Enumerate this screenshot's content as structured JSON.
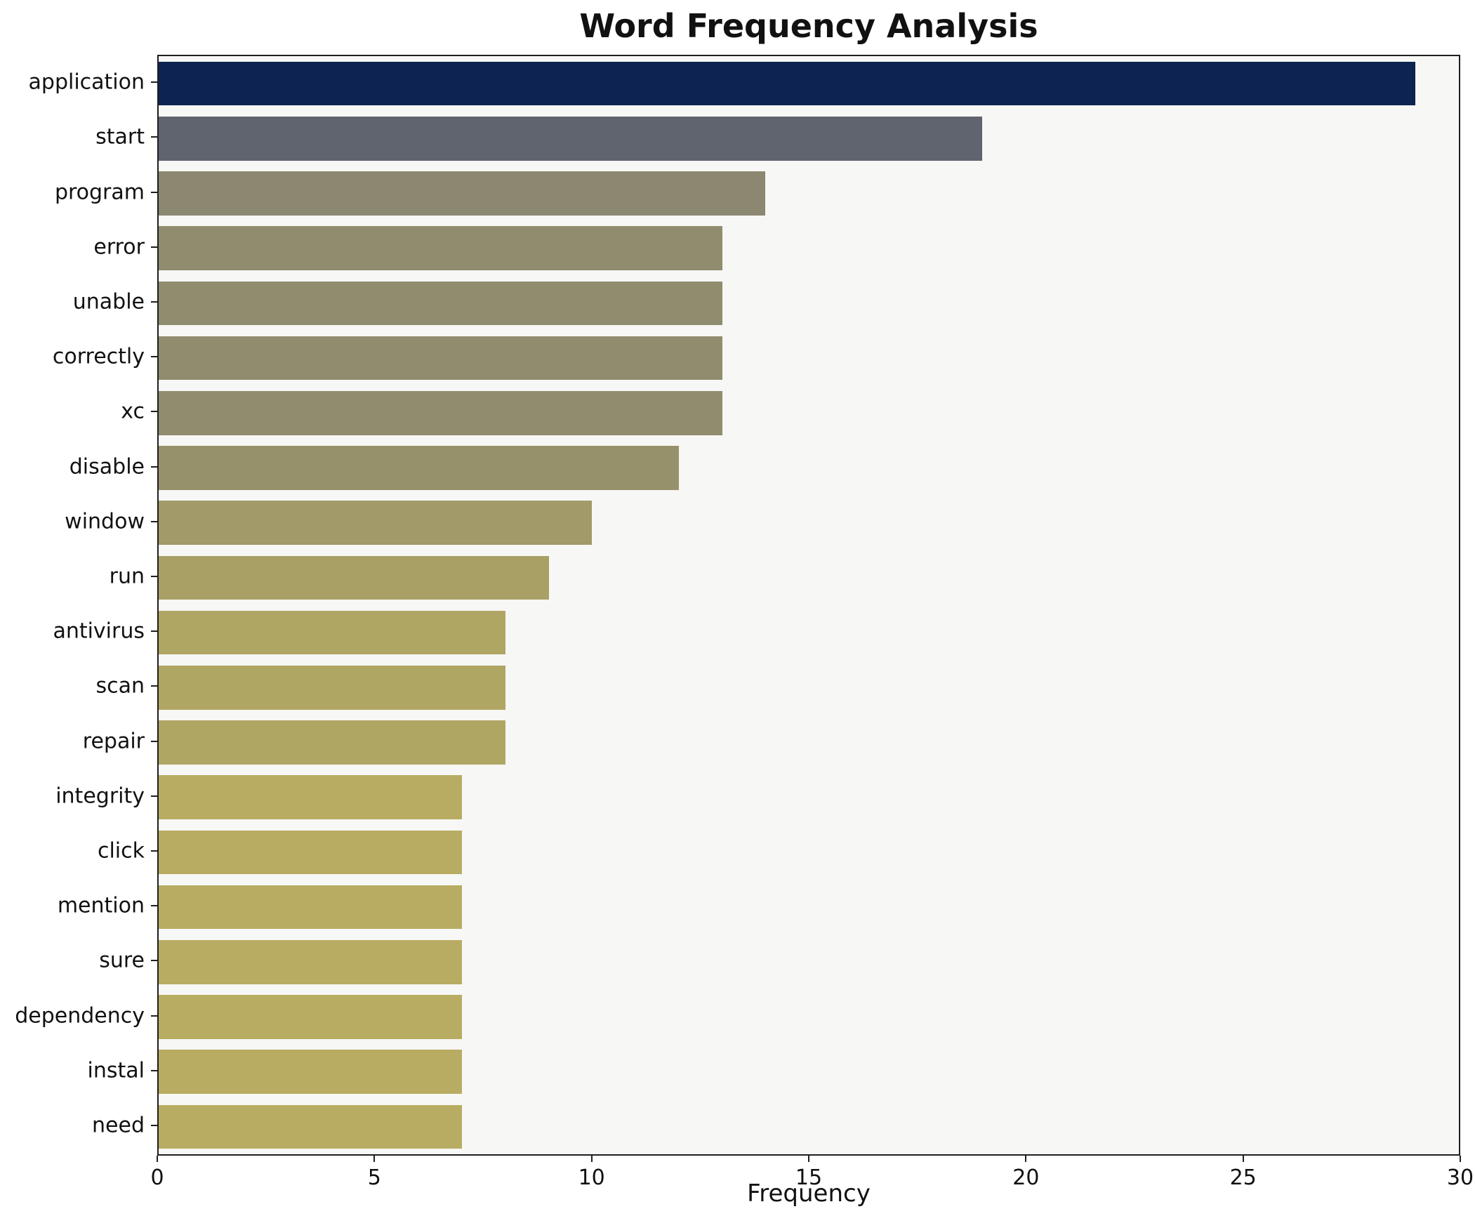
{
  "chart_data": {
    "type": "bar",
    "orientation": "horizontal",
    "title": "Word Frequency Analysis",
    "xlabel": "Frequency",
    "ylabel": "",
    "categories": [
      "application",
      "start",
      "program",
      "error",
      "unable",
      "correctly",
      "xc",
      "disable",
      "window",
      "run",
      "antivirus",
      "scan",
      "repair",
      "integrity",
      "click",
      "mention",
      "sure",
      "dependency",
      "instal",
      "need"
    ],
    "values": [
      29,
      19,
      14,
      13,
      13,
      13,
      13,
      12,
      10,
      9,
      8,
      8,
      8,
      7,
      7,
      7,
      7,
      7,
      7,
      7
    ],
    "colors": [
      "#0d2351",
      "#60646f",
      "#8b8770",
      "#908c6e",
      "#908c6e",
      "#908c6e",
      "#908c6e",
      "#97916b",
      "#a29a68",
      "#a9a066",
      "#b0a664",
      "#b0a664",
      "#b0a664",
      "#b8ac62",
      "#b8ac62",
      "#b8ac62",
      "#b8ac62",
      "#b8ac62",
      "#b8ac62",
      "#b8ac62"
    ],
    "xlim": [
      0,
      30
    ],
    "xticks": [
      0,
      5,
      10,
      15,
      20,
      25,
      30
    ],
    "grid": false,
    "legend_position": "none",
    "plot_background": "#f7f7f5"
  }
}
